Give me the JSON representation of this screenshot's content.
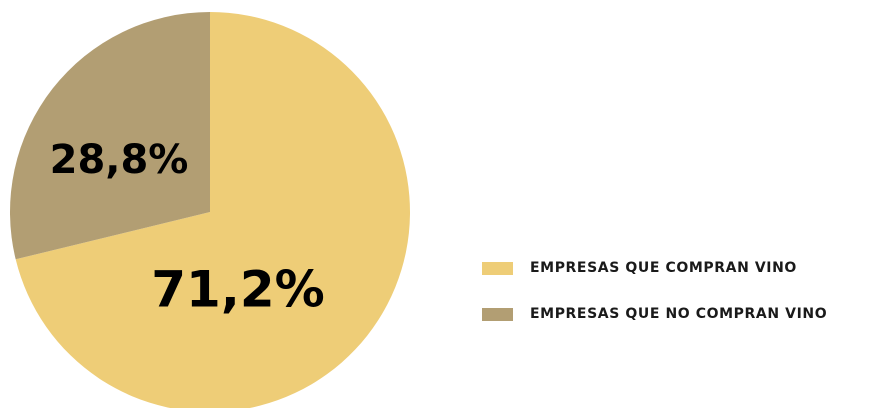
{
  "chart_data": {
    "type": "pie",
    "slices": [
      {
        "label": "EMPRESAS QUE COMPRAN VINO",
        "value": 71.2,
        "display": "71,2%",
        "color": "#eecd77"
      },
      {
        "label": "EMPRESAS QUE NO COMPRAN VINO",
        "value": 28.8,
        "display": "28,8%",
        "color": "#b29e73"
      }
    ],
    "start_angle_deg": 0,
    "direction": "clockwise",
    "legend_position": "right"
  }
}
